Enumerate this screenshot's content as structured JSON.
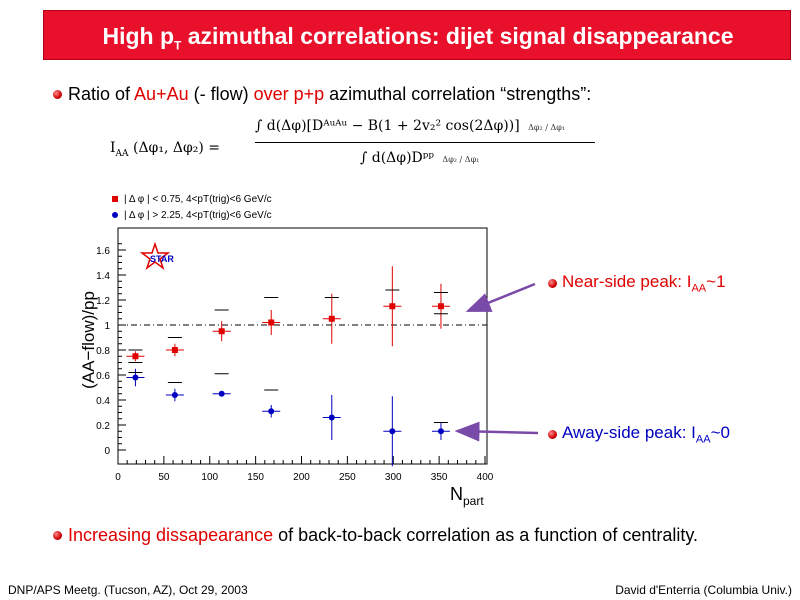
{
  "slide": {
    "title_prefix": "High p",
    "title_sub": "T",
    "title_suffix": " azimuthal correlations: dijet signal disappearance",
    "bullet1": {
      "t1": "Ratio of ",
      "t2": "Au+Au",
      "t3": " (- flow) ",
      "t4": "over p+p",
      "t5": " azimuthal correlation “strengths”:"
    },
    "formula": {
      "lhs": "I",
      "lhs_sub": "AA",
      "lhs_args": "(Δφ₁, Δφ₂) =",
      "numerator": "∫ d(Δφ)[Dᴬᵘᴬᵘ − B(1 + 2v₂² cos(2Δφ))]",
      "numerator_lims": "Δφ₂ / Δφ₁",
      "denominator": "∫ d(Δφ)Dᵖᵖ",
      "denominator_lims": "Δφ₂ / Δφ₁"
    },
    "near_label": "Near-side peak: I",
    "near_sub": "AA",
    "near_value": "~1",
    "away_label": "Away-side peak: I",
    "away_sub": "AA",
    "away_value": "~0",
    "bottom": {
      "t1": "Increasing dissapearance",
      "t2": " of back-to-back correlation as a function of centrality."
    },
    "footer_left": "DNP/APS Meetg. (Tucson, AZ), Oct 29, 2003",
    "footer_right": "David d'Enterria (Columbia Univ.)"
  },
  "chart_data": {
    "type": "scatter",
    "logo": "STAR",
    "xlabel": "N",
    "xlabel_sub": "part",
    "ylabel": "(AA−flow)/pp",
    "xlim": [
      0,
      400
    ],
    "ylim": [
      0,
      1.7
    ],
    "xticks": [
      0,
      50,
      100,
      150,
      200,
      250,
      300,
      350,
      400
    ],
    "yticks": [
      0,
      0.2,
      0.4,
      0.6,
      0.8,
      1,
      1.2,
      1.4,
      1.6
    ],
    "ytick_labels": [
      "0",
      "0.2",
      "0.4",
      "0.6",
      "0.8",
      "1",
      "1.2",
      "1.4",
      "1.6"
    ],
    "reference_line": 1.0,
    "series": [
      {
        "name": "| Δφ | < 0.75, 4<p_T(trig)<6 GeV/c",
        "legend": "| Δ φ | < 0.75, 4<pT(trig)<6 GeV/c",
        "marker": "square",
        "color": "#e00000",
        "x": [
          19,
          62,
          113,
          167,
          233,
          299,
          352
        ],
        "y": [
          0.75,
          0.8,
          0.95,
          1.02,
          1.05,
          1.15,
          1.15
        ],
        "err": [
          0.04,
          0.05,
          0.08,
          0.1,
          0.2,
          0.32,
          0.18
        ],
        "sys_hi": [
          0.8,
          0.9,
          1.12,
          1.22,
          1.22,
          1.28,
          1.26
        ],
        "sys_lo": [
          0.7,
          null,
          null,
          null,
          null,
          null,
          1.09
        ]
      },
      {
        "name": "| Δφ | > 2.25, 4<p_T(trig)<6 GeV/c",
        "legend": "| Δ φ | > 2.25, 4<pT(trig)<6 GeV/c",
        "marker": "circle",
        "color": "#0000c0",
        "x": [
          19,
          62,
          113,
          167,
          233,
          299,
          352
        ],
        "y": [
          0.58,
          0.44,
          0.45,
          0.31,
          0.26,
          0.15,
          0.15
        ],
        "err": [
          0.07,
          0.05,
          0.02,
          0.05,
          0.18,
          0.28,
          0.07
        ],
        "sys_hi": [
          0.62,
          0.54,
          0.61,
          0.48,
          null,
          null,
          0.22
        ],
        "sys_lo": [
          null,
          null,
          null,
          null,
          null,
          null,
          null
        ]
      }
    ]
  }
}
